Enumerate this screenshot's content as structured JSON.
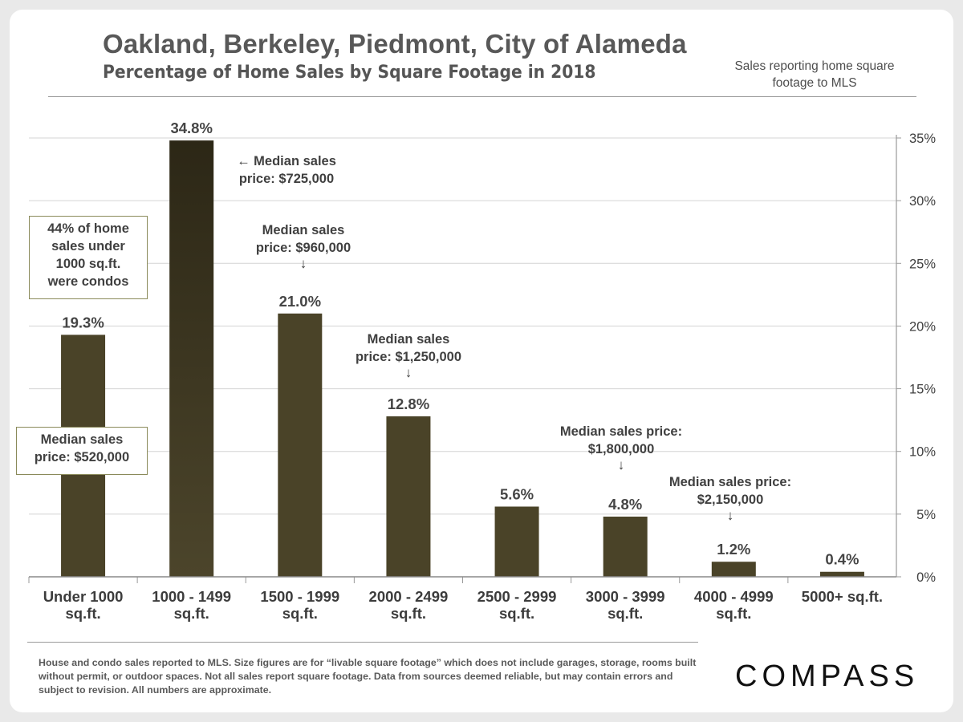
{
  "title": "Oakland, Berkeley, Piedmont, City of Alameda",
  "subtitle": "Percentage of Home Sales by Square Footage in 2018",
  "corner_note": "Sales reporting home square footage to MLS",
  "chart_data": {
    "type": "bar",
    "categories": [
      [
        "Under 1000",
        "sq.ft."
      ],
      [
        "1000 - 1499",
        "sq.ft."
      ],
      [
        "1500 - 1999",
        "sq.ft."
      ],
      [
        "2000 - 2499",
        "sq.ft."
      ],
      [
        "2500 - 2999",
        "sq.ft."
      ],
      [
        "3000 - 3999",
        "sq.ft."
      ],
      [
        "4000 - 4999",
        "sq.ft."
      ],
      [
        "5000+ sq.ft."
      ]
    ],
    "values": [
      19.3,
      34.8,
      21.0,
      12.8,
      5.6,
      4.8,
      1.2,
      0.4
    ],
    "value_labels": [
      "19.3%",
      "34.8%",
      "21.0%",
      "12.8%",
      "5.6%",
      "4.8%",
      "1.2%",
      "0.4%"
    ],
    "ylim": [
      0,
      35
    ],
    "yticks": [
      0,
      5,
      10,
      15,
      20,
      25,
      30,
      35
    ],
    "ytick_labels": [
      "0%",
      "5%",
      "10%",
      "15%",
      "20%",
      "25%",
      "30%",
      "35%"
    ],
    "y_axis_side": "right",
    "grid": true,
    "bar_color": "#4a4328"
  },
  "annotations": {
    "condos_box": [
      "44% of home",
      "sales under",
      "1000 sq.ft.",
      "were condos"
    ],
    "median_under_1000": [
      "Median sales",
      "price: $520,000"
    ],
    "median_1000_1499": [
      "← Median sales",
      "price: $725,000"
    ],
    "median_1500_1999": [
      "Median sales",
      "price: $960,000",
      "↓"
    ],
    "median_2000_2499": [
      "Median sales",
      "price: $1,250,000",
      "↓"
    ],
    "median_3000_3999": [
      "Median sales price:",
      "$1,800,000",
      "↓"
    ],
    "median_4000_4999": [
      "Median sales price:",
      "$2,150,000",
      "↓"
    ]
  },
  "footnote": "House and condo sales reported to MLS. Size figures are for “livable square footage” which does not include garages, storage, rooms built without permit, or outdoor spaces. Not all sales report square footage. Data from sources deemed reliable, but may contain errors and subject to revision.  All numbers are approximate.",
  "brand": "COMPASS"
}
